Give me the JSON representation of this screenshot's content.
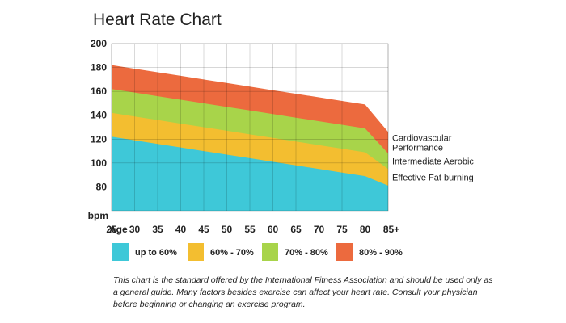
{
  "chart_data": {
    "type": "area",
    "title": "Heart Rate Chart",
    "xlabel": "Age",
    "ylabel": "bpm",
    "categories": [
      "25",
      "30",
      "35",
      "40",
      "45",
      "50",
      "55",
      "60",
      "65",
      "70",
      "75",
      "80",
      "85+"
    ],
    "x_tick_labels": [
      "25",
      "30",
      "35",
      "40",
      "45",
      "50",
      "55",
      "60",
      "65",
      "70",
      "75",
      "80",
      "85+"
    ],
    "ylim": [
      60,
      200
    ],
    "y_ticks": [
      80,
      100,
      120,
      140,
      160,
      180,
      200
    ],
    "grid": true,
    "series": [
      {
        "name": "up to 60%",
        "color": "#3ec8d8",
        "values": [
          122,
          119,
          116,
          113,
          110,
          107,
          104,
          101,
          98,
          95,
          92,
          89,
          81
        ]
      },
      {
        "name": "60% - 70%",
        "color": "#f3be30",
        "values": [
          142,
          139,
          136,
          133,
          130,
          127,
          124,
          121,
          118,
          115,
          112,
          109,
          95
        ]
      },
      {
        "name": "70% - 80%",
        "color": "#a8d44a",
        "values": [
          162,
          159,
          156,
          153,
          150,
          147,
          144,
          141,
          138,
          135,
          132,
          129,
          108
        ]
      },
      {
        "name": "80% - 90%",
        "color": "#ec6a3e",
        "values": [
          182,
          179,
          176,
          173,
          170,
          167,
          164,
          161,
          158,
          155,
          152,
          149,
          126
        ]
      }
    ],
    "band_labels": [
      {
        "lines": [
          "Cardiovascular",
          "Performance"
        ],
        "range": [
          108,
          126
        ]
      },
      {
        "lines": [
          "Intermediate Aerobic"
        ],
        "range": [
          95,
          108
        ]
      },
      {
        "lines": [
          "Effective Fat burning"
        ],
        "range": [
          81,
          95
        ]
      }
    ]
  },
  "footnote": "This chart is the standard offered by the International Fitness Association and should be used only as a general guide. Many factors besides exercise can affect your heart rate. Consult your physician before beginning or changing an exercise program."
}
